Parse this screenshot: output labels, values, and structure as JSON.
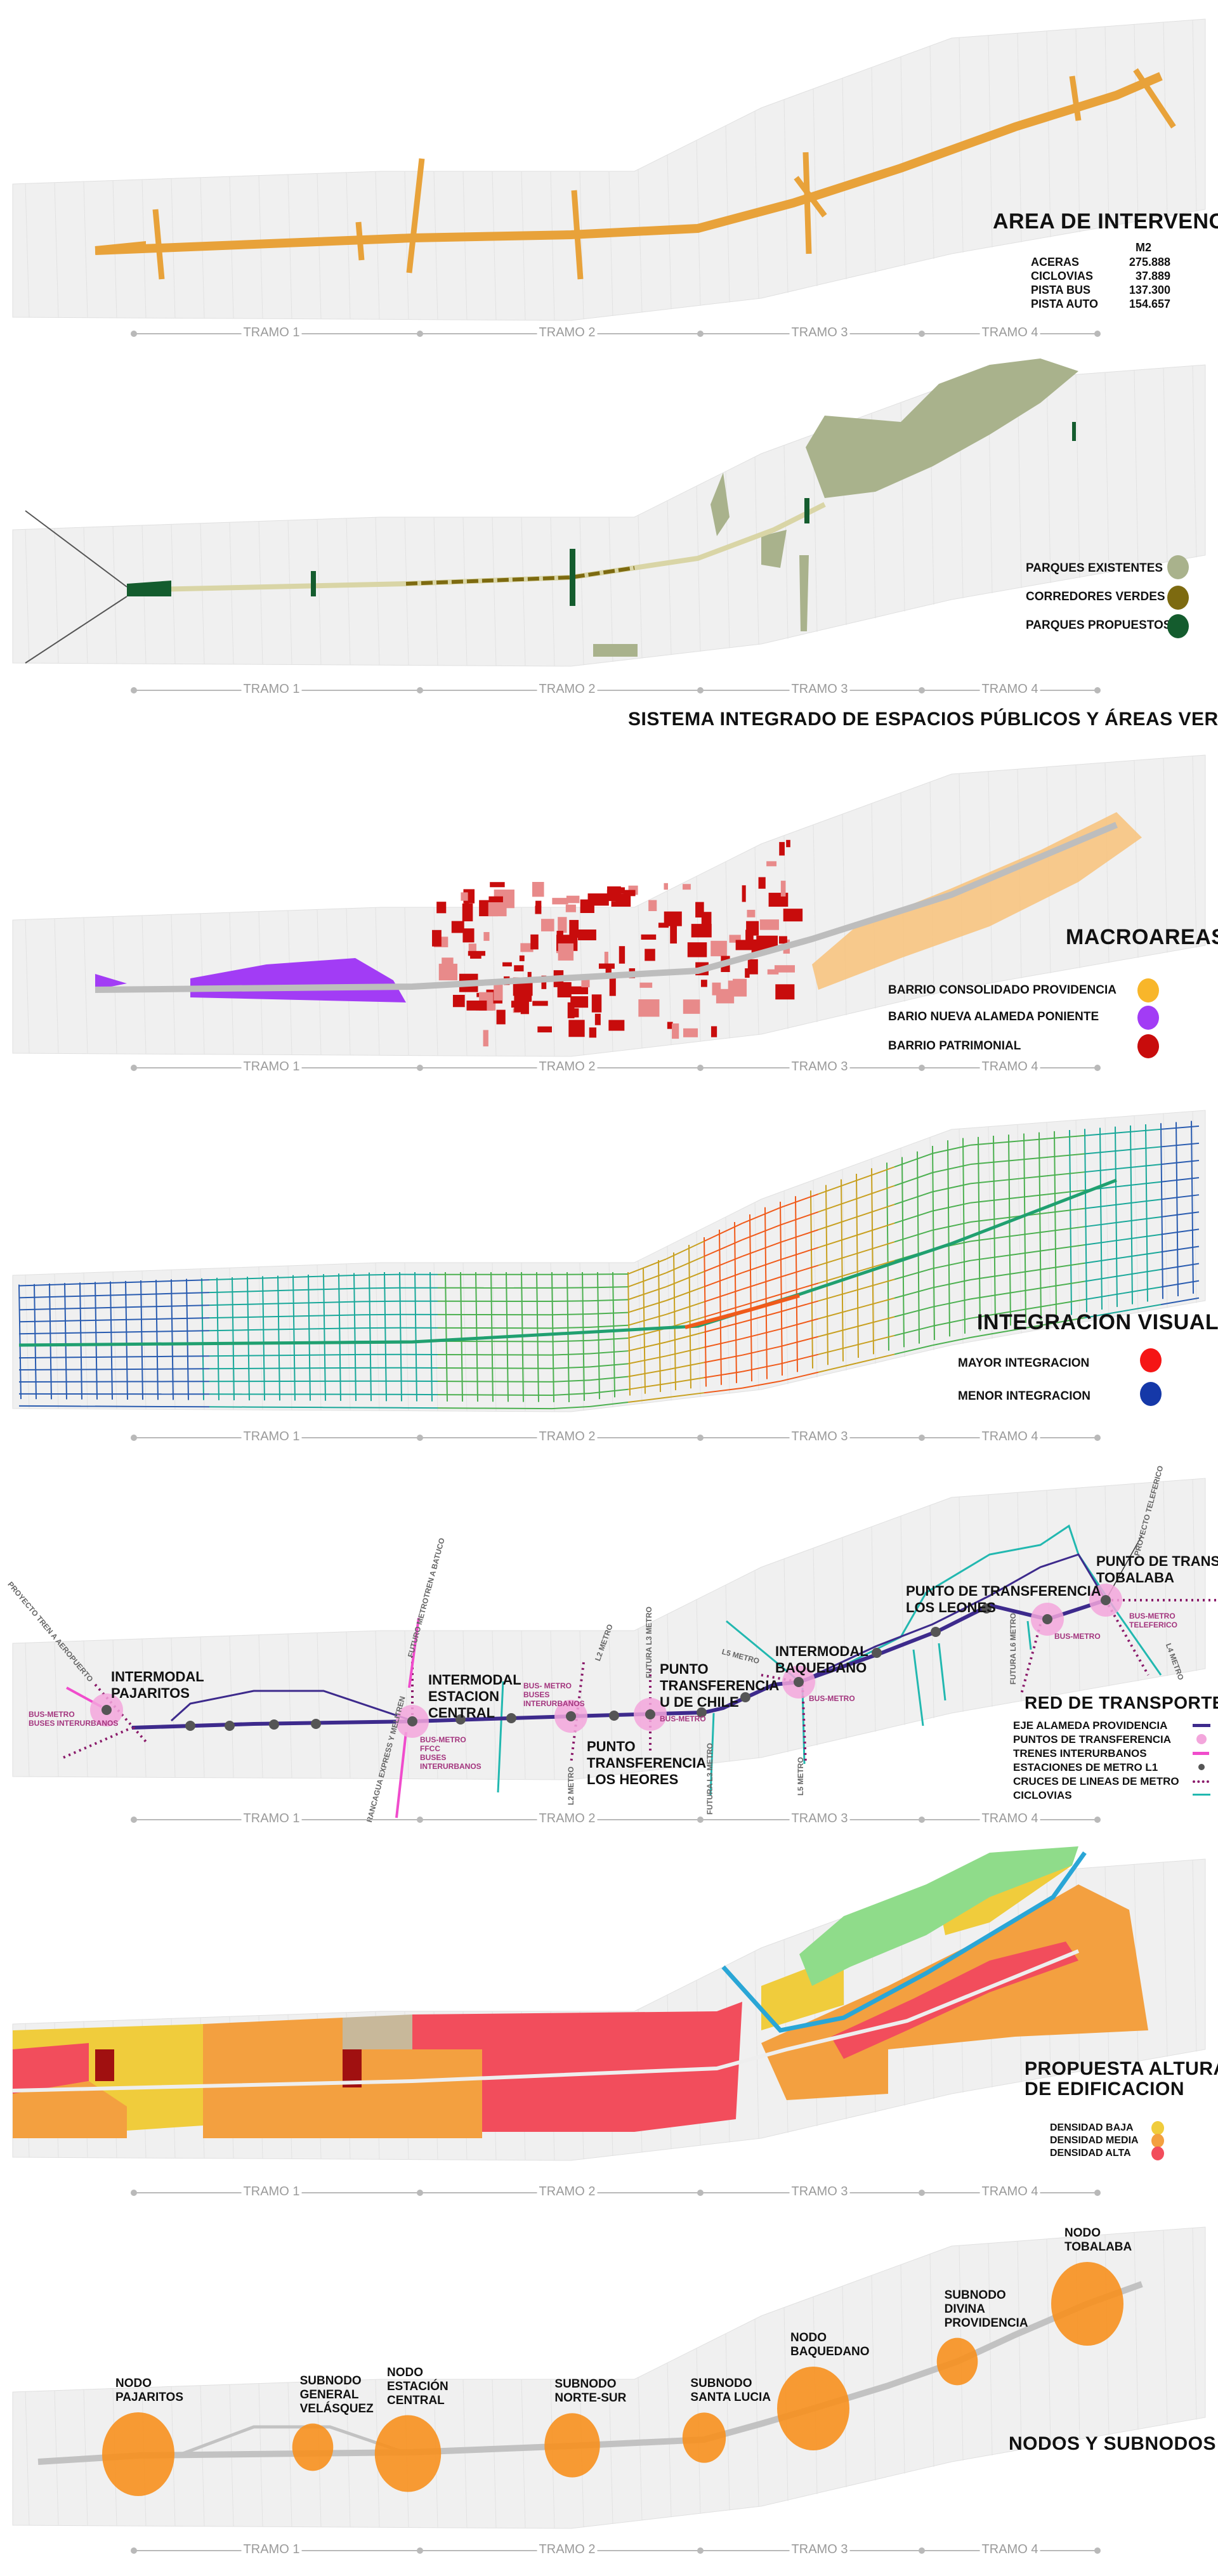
{
  "tramos": [
    "TRAMO 1",
    "TRAMO 2",
    "TRAMO 3",
    "TRAMO 4"
  ],
  "area": {
    "title": "AREA DE INTERVENCION",
    "unit": "M2",
    "rows": [
      {
        "label": "ACERAS",
        "value": "275.888"
      },
      {
        "label": "CICLOVIAS",
        "value": "37.889"
      },
      {
        "label": "PISTA BUS",
        "value": "137.300"
      },
      {
        "label": "PISTA AUTO",
        "value": "154.657"
      }
    ],
    "color": "#e8a23a"
  },
  "verdes": {
    "title": "SISTEMA INTEGRADO DE ESPACIOS PÚBLICOS Y ÁREAS VERDES",
    "legend": [
      {
        "label": "PARQUES EXISTENTES",
        "color": "#a9b28c"
      },
      {
        "label": "CORREDORES VERDES",
        "color": "#7d6a10"
      },
      {
        "label": "PARQUES PROPUESTOS",
        "color": "#145c2e"
      }
    ]
  },
  "macroareas": {
    "title": "MACROAREAS",
    "legend": [
      {
        "label": "BARRIO CONSOLIDADO PROVIDENCIA",
        "color": "#f8b62a"
      },
      {
        "label": "BARIO NUEVA ALAMEDA PONIENTE",
        "color": "#a23cf5"
      },
      {
        "label": "BARRIO PATRIMONIAL",
        "color": "#c80c0c"
      }
    ]
  },
  "integracion": {
    "title": "INTEGRACION VISUAL",
    "legend": [
      {
        "label": "MAYOR INTEGRACION",
        "color": "#f51515"
      },
      {
        "label": "MENOR INTEGRACION",
        "color": "#1538a8"
      }
    ]
  },
  "transporte": {
    "title": "RED DE TRANSPORTE",
    "legend": [
      {
        "label": "EJE ALAMEDA PROVIDENCIA",
        "color": "#3d2a8c"
      },
      {
        "label": "PUNTOS DE TRANSFERENCIA",
        "color": "#f3a6dc"
      },
      {
        "label": "TRENES INTERURBANOS",
        "color": "#f04ccc"
      },
      {
        "label": "ESTACIONES DE METRO L1",
        "color": "#555555"
      },
      {
        "label": "CRUCES DE LINEAS DE METRO",
        "color": "#8a1a6a"
      },
      {
        "label": "CICLOVIAS",
        "color": "#22b8b0"
      }
    ],
    "nodes": [
      {
        "title": "INTERMODAL\nPAJARITOS",
        "sub": "BUS-METRO\nBUSES INTERURBANOS"
      },
      {
        "title": "INTERMODAL\nESTACION\nCENTRAL",
        "sub": "BUS-METRO\nFFCC\nBUSES\nINTERURBANOS"
      },
      {
        "title": "PUNTO\nTRANSFERENCIA\nLOS HEORES",
        "sub": "BUS- METRO\nBUSES\nINTERURBANOS"
      },
      {
        "title": "PUNTO\nTRANSFERENCIA\nU DE CHILE",
        "sub": "BUS-METRO"
      },
      {
        "title": "INTERMODAL\nBAQUEDANO",
        "sub": "BUS-METRO"
      },
      {
        "title": "PUNTO DE TRANSFERENCIA\nLOS LEONES",
        "sub": "BUS-METRO"
      },
      {
        "title": "PUNTO DE TRANSFER\nTOBALABA",
        "sub": "BUS-METRO\nTELEFERICO"
      }
    ],
    "lines": {
      "tren_aeropuerto": "PROYECTO TREN A AEROPUERTO",
      "metrotren": "FUTURO METROTREN A BATUCO",
      "rancagua": "RANCAGUA EXPRESS Y MELITREN",
      "l2_n": "L2 METRO",
      "l2_s": "L2 METRO",
      "l3_n": "FUTURA L3 METRO",
      "l3_s": "FUTURA L3 METRO",
      "l5_w": "L5 METRO",
      "l5_s": "L5 METRO",
      "l6": "FUTURA L6 METRO",
      "l4": "L4 METRO",
      "teleferico": "PROYECTO TELEFERICO"
    }
  },
  "alturas": {
    "title": "PROPUESTA ALTURAS\nDE EDIFICACION",
    "legend": [
      {
        "label": "DENSIDAD BAJA",
        "color": "#f0cc3c"
      },
      {
        "label": "DENSIDAD MEDIA",
        "color": "#f3a040"
      },
      {
        "label": "DENSIDAD ALTA",
        "color": "#f24d5c"
      }
    ]
  },
  "nodos": {
    "title": "NODOS Y SUBNODOS",
    "color": "#f7901e",
    "items": [
      {
        "label": "NODO\nPAJARITOS",
        "type": "nodo"
      },
      {
        "label": "SUBNODO\nGENERAL\nVELÁSQUEZ",
        "type": "subnodo"
      },
      {
        "label": "NODO\nESTACIÓN\nCENTRAL",
        "type": "nodo"
      },
      {
        "label": "SUBNODO\nNORTE-SUR",
        "type": "subnodo"
      },
      {
        "label": "SUBNODO\nSANTA LUCIA",
        "type": "subnodo"
      },
      {
        "label": "NODO\nBAQUEDANO",
        "type": "nodo"
      },
      {
        "label": "SUBNODO\nDIVINA\nPROVIDENCIA",
        "type": "subnodo"
      },
      {
        "label": "NODO\nTOBALABA",
        "type": "nodo"
      }
    ]
  }
}
